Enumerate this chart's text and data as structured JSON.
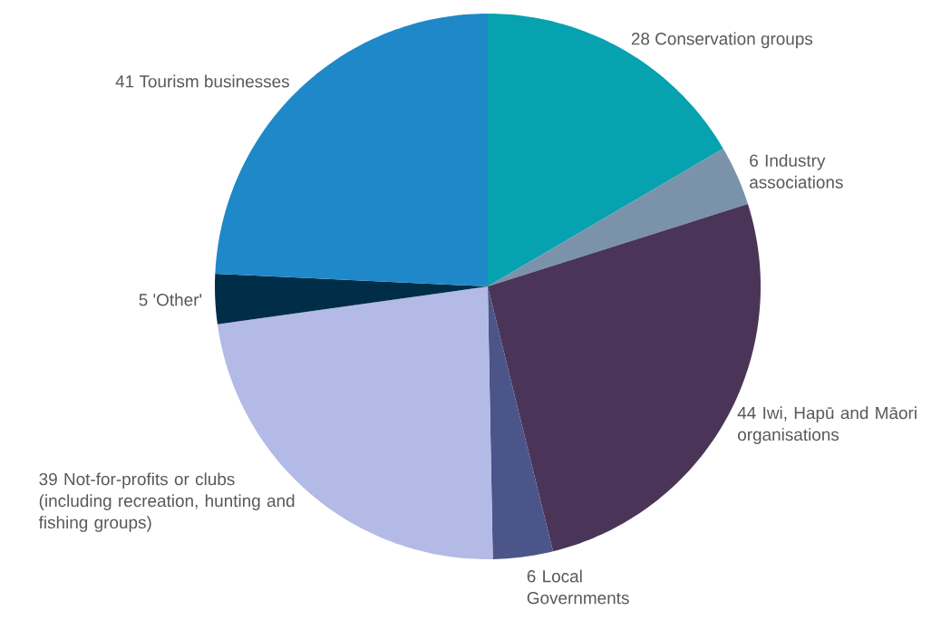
{
  "chart_data": {
    "type": "pie",
    "categories": [
      "Conservation groups",
      "Industry associations",
      "Iwi, Hapū and Māori organisations",
      "Local Governments",
      "Not-for-profits or clubs (including recreation, hunting and fishing groups)",
      "'Other'",
      "Tourism businesses"
    ],
    "values": [
      28,
      6,
      44,
      6,
      39,
      5,
      41
    ],
    "colors": [
      "#06a2b0",
      "#7a93ab",
      "#4a3558",
      "#4b558a",
      "#b4bae6",
      "#002d48",
      "#1f88c8"
    ],
    "data_labels": true
  }
}
